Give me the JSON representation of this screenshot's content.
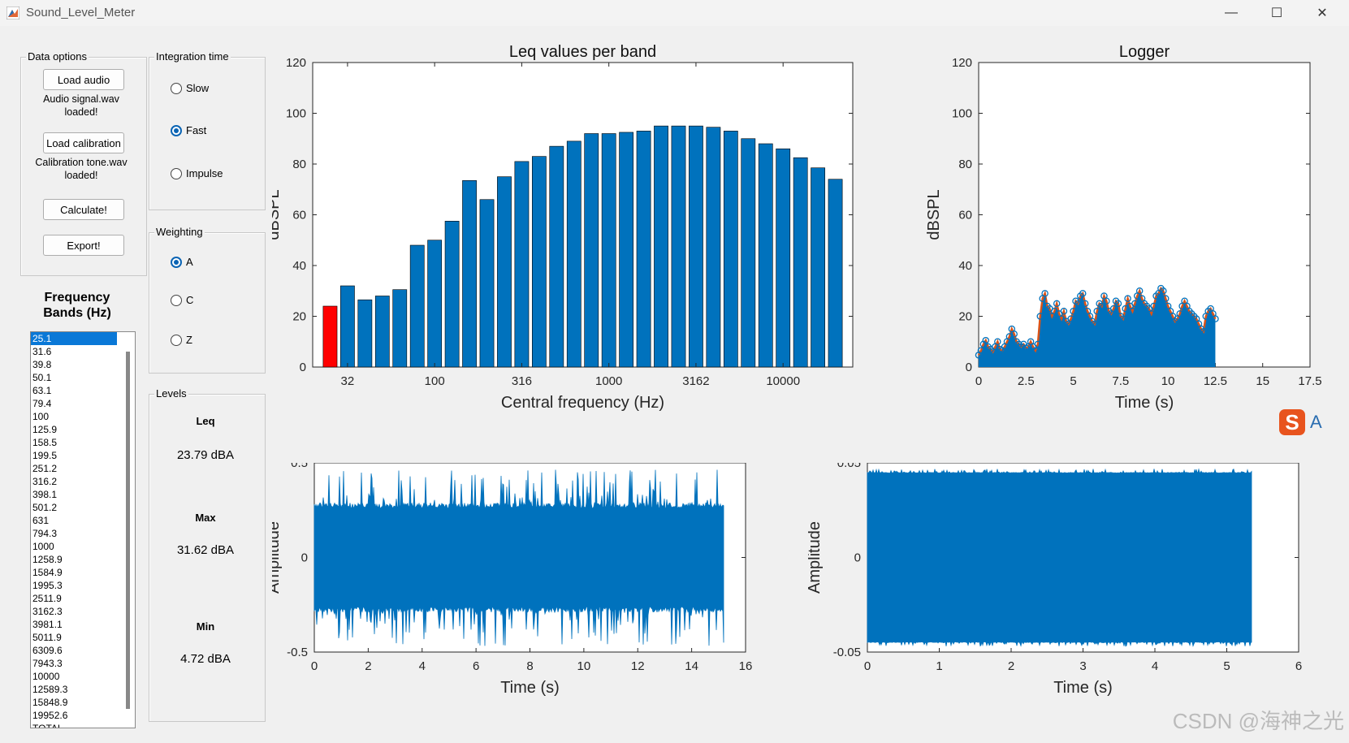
{
  "window": {
    "title": "Sound_Level_Meter",
    "minimize": "—",
    "maximize": "☐",
    "close": "✕"
  },
  "data_options": {
    "title": "Data options",
    "load_audio": "Load audio",
    "audio_status": "Audio signal.wav loaded!",
    "load_calibration": "Load calibration",
    "calibration_status": "Calibration tone.wav loaded!",
    "calculate": "Calculate!",
    "export": "Export!"
  },
  "integration": {
    "title": "Integration time",
    "slow": "Slow",
    "fast": "Fast",
    "impulse": "Impulse",
    "selected": "Fast"
  },
  "weighting": {
    "title": "Weighting",
    "a": "A",
    "c": "C",
    "z": "Z",
    "selected": "A"
  },
  "levels": {
    "title": "Levels",
    "leq_label": "Leq",
    "leq_value": "23.79 dBA",
    "max_label": "Max",
    "max_value": "31.62 dBA",
    "min_label": "Min",
    "min_value": "4.72 dBA"
  },
  "frequency_bands": {
    "title": "Frequency Bands (Hz)",
    "items": [
      "25.1",
      "31.6",
      "39.8",
      "50.1",
      "63.1",
      "79.4",
      "100",
      "125.9",
      "158.5",
      "199.5",
      "251.2",
      "316.2",
      "398.1",
      "501.2",
      "631",
      "794.3",
      "1000",
      "1258.9",
      "1584.9",
      "1995.3",
      "2511.9",
      "3162.3",
      "3981.1",
      "5011.9",
      "6309.6",
      "7943.3",
      "10000",
      "12589.3",
      "15848.9",
      "19952.6",
      "TOTAL"
    ],
    "selected_index": 0
  },
  "chart_data": [
    {
      "id": "leq",
      "type": "bar",
      "title": "Leq values per band",
      "xlabel": "Central frequency (Hz)",
      "ylabel": "dBSPL",
      "ylim": [
        0,
        120
      ],
      "yticks": [
        "0",
        "20",
        "40",
        "60",
        "80",
        "100",
        "120"
      ],
      "xticks": [
        "32",
        "100",
        "316",
        "1000",
        "3162",
        "10000"
      ],
      "values": [
        24,
        32,
        26.5,
        28,
        30.5,
        48,
        50,
        57.5,
        73.5,
        66,
        75,
        81,
        83,
        87,
        89,
        92,
        92,
        92.5,
        93,
        95,
        95,
        95,
        94.5,
        93,
        90,
        88,
        86,
        82.5,
        78.5,
        74
      ],
      "highlight_index": 0,
      "bar_color": "#0072bd",
      "highlight_color": "#ff0000"
    },
    {
      "id": "logger",
      "type": "area",
      "title": "Logger",
      "xlabel": "Time (s)",
      "ylabel": "dBSPL",
      "xlim": [
        0,
        17.5
      ],
      "ylim": [
        0,
        120
      ],
      "xticks": [
        "0",
        "2.5",
        "5",
        "7.5",
        "10",
        "12.5",
        "15",
        "17.5"
      ],
      "yticks": [
        "0",
        "20",
        "40",
        "60",
        "80",
        "100",
        "120"
      ],
      "x_step": 0.125,
      "values": [
        4.7,
        6.5,
        9,
        10.5,
        8,
        7,
        6,
        8,
        10,
        7,
        6.5,
        8,
        10,
        12,
        15,
        13,
        10,
        9,
        8,
        9,
        7.5,
        8,
        10,
        8,
        6.5,
        9,
        20,
        27,
        29,
        24,
        23,
        20,
        22,
        25,
        21,
        19,
        22,
        18,
        17,
        19,
        22,
        26,
        25,
        28,
        29,
        25,
        22,
        20,
        18,
        17,
        22,
        25,
        24,
        28,
        26,
        22,
        21,
        23,
        26,
        25,
        20,
        19,
        23,
        27,
        24,
        22,
        25,
        28,
        30,
        27,
        25,
        24,
        23,
        21,
        24,
        28,
        29,
        31,
        30,
        27,
        24,
        22,
        20,
        18,
        19,
        21,
        24,
        26,
        24,
        22,
        21,
        20,
        19,
        17,
        15,
        14,
        20,
        22,
        23,
        21,
        19
      ],
      "line_color": "#d95319",
      "marker_color": "#0072bd"
    },
    {
      "id": "audio",
      "type": "line",
      "title": "Audio signal.wav",
      "xlabel": "Time (s)",
      "ylabel": "Amplitude",
      "xlim": [
        0,
        16
      ],
      "ylim": [
        -0.5,
        0.5
      ],
      "xticks": [
        "0",
        "2",
        "4",
        "6",
        "8",
        "10",
        "12",
        "14",
        "16"
      ],
      "yticks": [
        "-0.5",
        "0",
        "0.5"
      ],
      "duration": 15.2,
      "body_amplitude": 0.26,
      "peak_amplitude": 0.47
    },
    {
      "id": "calib",
      "type": "line",
      "title": "Calibration tone.wav",
      "xlabel": "Time (s)",
      "ylabel": "Amplitude",
      "xlim": [
        0,
        6
      ],
      "ylim": [
        -0.05,
        0.05
      ],
      "xticks": [
        "0",
        "1",
        "2",
        "3",
        "4",
        "5",
        "6"
      ],
      "yticks": [
        "-0.05",
        "0",
        "0.05"
      ],
      "duration": 5.35,
      "amplitude": 0.046
    }
  ],
  "watermark": "CSDN @海神之光",
  "ime": {
    "logo": "S",
    "mode": "A"
  }
}
